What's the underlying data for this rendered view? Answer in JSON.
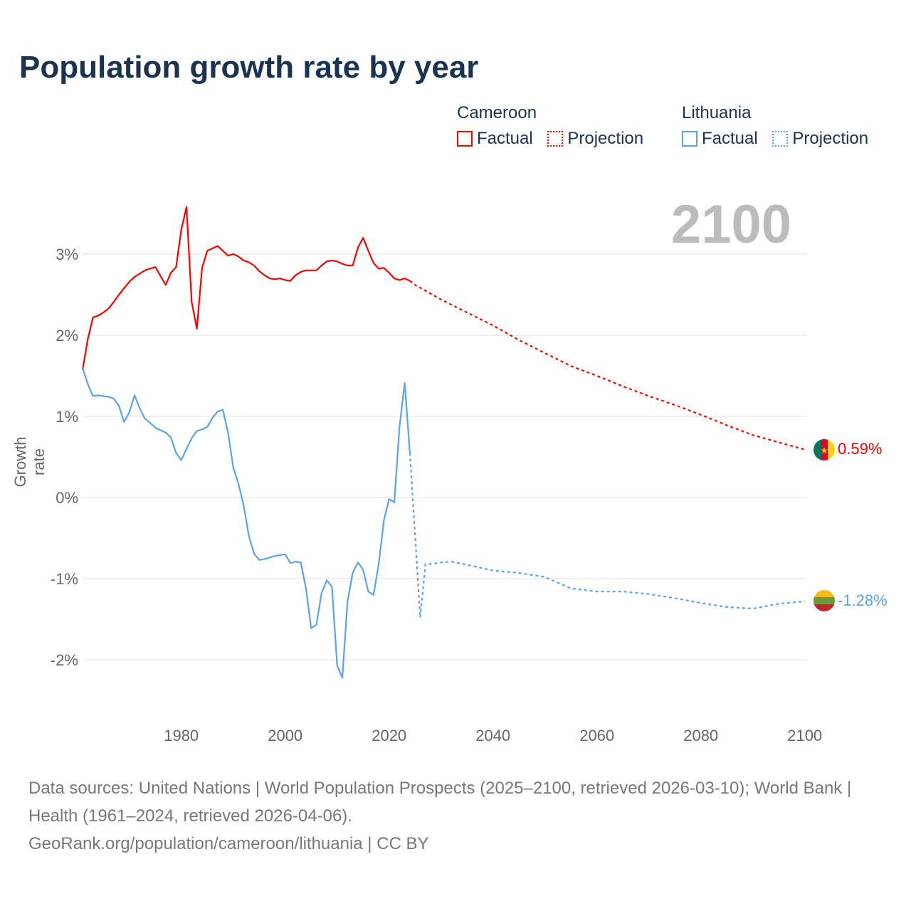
{
  "title": "Population growth rate by year",
  "legend": {
    "groups": [
      {
        "name": "Cameroon",
        "factual": "Factual",
        "projection": "Projection",
        "color": "#ff0000"
      },
      {
        "name": "Lithuania",
        "factual": "Factual",
        "projection": "Projection",
        "color": "#5ba3e8"
      }
    ]
  },
  "current_year": "2100",
  "footer": {
    "sources": "Data sources: United Nations | World Population Prospects (2025–2100, retrieved 2026-03-10); World Bank | Health (1961–2024, retrieved 2026-04-06).",
    "credit": "GeoRank.org/population/cameroon/lithuania | CC BY"
  },
  "chart_data": {
    "type": "line",
    "title": "Population growth rate by year",
    "xlabel": "",
    "ylabel": "Growth rate",
    "xlim": [
      1961,
      2100
    ],
    "ylim": [
      -2.5,
      4
    ],
    "x_ticks": [
      {
        "v": 1980,
        "label": "1980"
      },
      {
        "v": 2000,
        "label": "2000"
      },
      {
        "v": 2020,
        "label": "2020"
      },
      {
        "v": 2040,
        "label": "2040"
      },
      {
        "v": 2060,
        "label": "2060"
      },
      {
        "v": 2080,
        "label": "2080"
      },
      {
        "v": 2100,
        "label": "2100"
      }
    ],
    "y_ticks": [
      {
        "v": 3,
        "label": "3%"
      },
      {
        "v": 2,
        "label": "2%"
      },
      {
        "v": 1,
        "label": "1%"
      },
      {
        "v": 0,
        "label": "0%"
      },
      {
        "v": -1,
        "label": "-1%"
      },
      {
        "v": -2,
        "label": "-2%"
      }
    ],
    "grid": true,
    "series": [
      {
        "name": "Cameroon",
        "color": "#ff0000",
        "end_label": "0.59%",
        "factual": {
          "start": 1961,
          "values": [
            1.57,
            1.95,
            2.22,
            2.24,
            2.28,
            2.33,
            2.41,
            2.5,
            2.58,
            2.66,
            2.72,
            2.76,
            2.8,
            2.82,
            2.84,
            2.73,
            2.62,
            2.77,
            2.84,
            3.3,
            3.58,
            2.41,
            2.08,
            2.83,
            3.04,
            3.07,
            3.1,
            3.04,
            2.98,
            3.0,
            2.97,
            2.92,
            2.9,
            2.86,
            2.79,
            2.74,
            2.7,
            2.69,
            2.7,
            2.68,
            2.67,
            2.74,
            2.78,
            2.8,
            2.8,
            2.8,
            2.86,
            2.91,
            2.92,
            2.91,
            2.88,
            2.86,
            2.86,
            3.08,
            3.2,
            3.04,
            2.89,
            2.82,
            2.83,
            2.77,
            2.7,
            2.68,
            2.7,
            2.67
          ]
        },
        "projection": {
          "x": [
            2024,
            2025,
            2030,
            2035,
            2040,
            2045,
            2050,
            2055,
            2060,
            2065,
            2070,
            2075,
            2080,
            2085,
            2090,
            2095,
            2100
          ],
          "values": [
            2.67,
            2.62,
            2.44,
            2.28,
            2.12,
            1.94,
            1.78,
            1.62,
            1.5,
            1.37,
            1.25,
            1.14,
            1.02,
            0.89,
            0.77,
            0.68,
            0.59
          ]
        }
      },
      {
        "name": "Lithuania",
        "color": "#5ba3e8",
        "end_label": "-1.28%",
        "factual": {
          "start": 1961,
          "values": [
            1.6,
            1.4,
            1.25,
            1.26,
            1.25,
            1.24,
            1.22,
            1.13,
            0.93,
            1.05,
            1.26,
            1.1,
            0.97,
            0.92,
            0.86,
            0.83,
            0.8,
            0.74,
            0.55,
            0.46,
            0.6,
            0.73,
            0.82,
            0.84,
            0.87,
            0.98,
            1.06,
            1.08,
            0.8,
            0.37,
            0.17,
            -0.1,
            -0.47,
            -0.69,
            -0.77,
            -0.76,
            -0.74,
            -0.72,
            -0.71,
            -0.7,
            -0.81,
            -0.79,
            -0.8,
            -1.12,
            -1.61,
            -1.57,
            -1.18,
            -1.02,
            -1.1,
            -2.07,
            -2.22,
            -1.28,
            -0.93,
            -0.8,
            -0.89,
            -1.16,
            -1.2,
            -0.82,
            -0.28,
            -0.02,
            -0.06,
            0.87,
            1.41,
            0.55
          ]
        },
        "projection": {
          "x": [
            2024,
            2025,
            2026,
            2027,
            2028,
            2030,
            2032,
            2035,
            2040,
            2045,
            2050,
            2055,
            2060,
            2065,
            2070,
            2075,
            2080,
            2085,
            2090,
            2095,
            2100
          ],
          "values": [
            0.55,
            -0.47,
            -1.48,
            -0.82,
            -0.82,
            -0.8,
            -0.79,
            -0.83,
            -0.9,
            -0.93,
            -0.98,
            -1.12,
            -1.16,
            -1.16,
            -1.19,
            -1.24,
            -1.3,
            -1.35,
            -1.37,
            -1.31,
            -1.28
          ]
        }
      }
    ]
  }
}
